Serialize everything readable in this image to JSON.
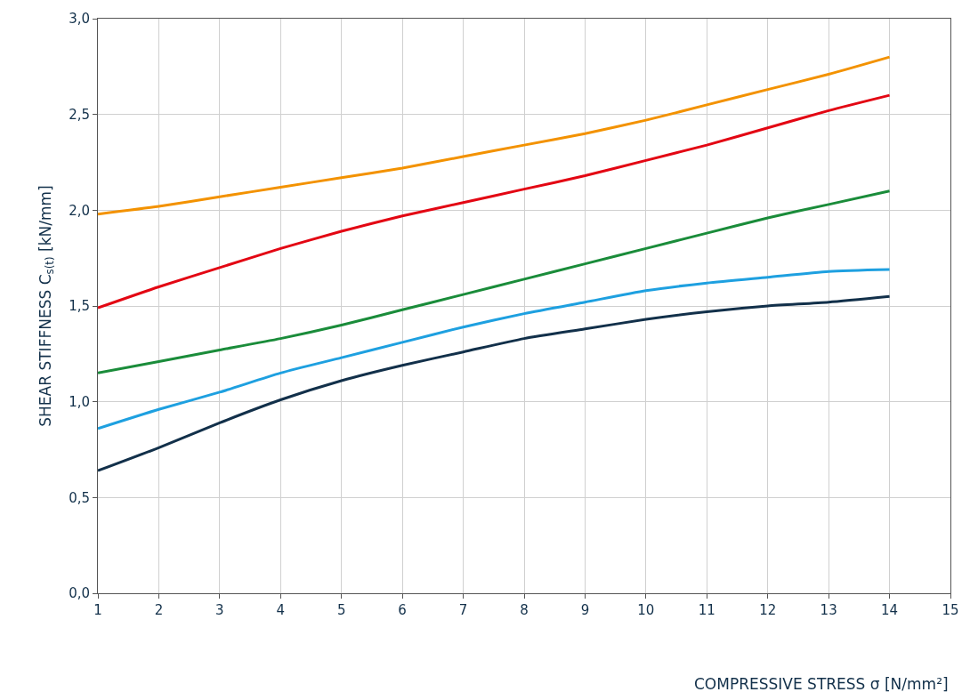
{
  "chart_data": {
    "type": "line",
    "xlabel": "COMPRESSIVE STRESS σ [N/mm²]",
    "ylabel": "SHEAR STIFFNESS C$_{s(t)}$ [kN/mm]",
    "x": [
      1,
      2,
      3,
      4,
      5,
      6,
      7,
      8,
      9,
      10,
      11,
      12,
      13,
      14
    ],
    "series": [
      {
        "color": "#f39200",
        "values": [
          1.98,
          2.02,
          2.07,
          2.12,
          2.17,
          2.22,
          2.28,
          2.34,
          2.4,
          2.47,
          2.55,
          2.63,
          2.71,
          2.8
        ]
      },
      {
        "color": "#e30613",
        "values": [
          1.49,
          1.6,
          1.7,
          1.8,
          1.89,
          1.97,
          2.04,
          2.11,
          2.18,
          2.26,
          2.34,
          2.43,
          2.52,
          2.6
        ]
      },
      {
        "color": "#1a8c3a",
        "values": [
          1.15,
          1.21,
          1.27,
          1.33,
          1.4,
          1.48,
          1.56,
          1.64,
          1.72,
          1.8,
          1.88,
          1.96,
          2.03,
          2.1
        ]
      },
      {
        "color": "#1ea0e0",
        "values": [
          0.86,
          0.96,
          1.05,
          1.15,
          1.23,
          1.31,
          1.39,
          1.46,
          1.52,
          1.58,
          1.62,
          1.65,
          1.68,
          1.69
        ]
      },
      {
        "color": "#12304a",
        "values": [
          0.64,
          0.76,
          0.89,
          1.01,
          1.11,
          1.19,
          1.26,
          1.33,
          1.38,
          1.43,
          1.47,
          1.5,
          1.52,
          1.55
        ]
      }
    ],
    "xlim": [
      1,
      15
    ],
    "xticks": [
      1,
      2,
      3,
      4,
      5,
      6,
      7,
      8,
      9,
      10,
      11,
      12,
      13,
      14,
      15
    ],
    "ylim": [
      0,
      3
    ],
    "yticks": [
      {
        "value": 0,
        "label": "0,0"
      },
      {
        "value": 0.5,
        "label": "0,5"
      },
      {
        "value": 1,
        "label": "1,0"
      },
      {
        "value": 1.5,
        "label": "1,5"
      },
      {
        "value": 2,
        "label": "2,0"
      },
      {
        "value": 2.5,
        "label": "2,5"
      },
      {
        "value": 3,
        "label": "3,0"
      }
    ],
    "grid": true,
    "marker": "none",
    "line_style": "solid"
  }
}
